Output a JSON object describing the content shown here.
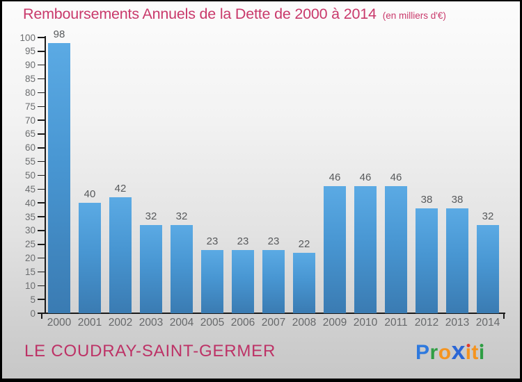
{
  "header": {
    "title": "Remboursements Annuels de la Dette de 2000 à 2014",
    "unit_note": "(en milliers d'€)"
  },
  "chart_data": {
    "type": "bar",
    "title": "Remboursements Annuels de la Dette de 2000 à 2014",
    "unit": "en milliers d'€",
    "categories": [
      "2000",
      "2001",
      "2002",
      "2003",
      "2004",
      "2005",
      "2006",
      "2007",
      "2008",
      "2009",
      "2010",
      "2011",
      "2012",
      "2013",
      "2014"
    ],
    "values": [
      98,
      40,
      42,
      32,
      32,
      23,
      23,
      23,
      22,
      46,
      46,
      46,
      38,
      38,
      32
    ],
    "xlabel": "",
    "ylabel": "",
    "ylim": [
      0,
      100
    ],
    "ytick_step": 5,
    "grid": false,
    "bar_value_labels_shown": true,
    "legend": null,
    "colors": {
      "bar_top": "#5baae4",
      "bar_bottom": "#3a7bb2",
      "axis": "#1a1a1a",
      "ytick_label": "#6b6d6f",
      "xtick_label": "#66686a",
      "value_label": "#57595b"
    }
  },
  "footer": {
    "location_label": "LE COUDRAY-SAINT-GERMER",
    "brand": {
      "name": "Proxiti",
      "letters": [
        {
          "char": "P",
          "color": "#2e79de"
        },
        {
          "char": "r",
          "color": "#2f9e44"
        },
        {
          "char": "o",
          "color": "#f5941f"
        },
        {
          "char": "x",
          "color": "#2a66d6",
          "big": true
        },
        {
          "char": "i",
          "color": "#f5941f",
          "dot_color": "#e23b2e"
        },
        {
          "char": "t",
          "color": "#f5941f"
        },
        {
          "char": "i",
          "color": "#2f9e44",
          "dot_color": "#2f9e44"
        }
      ]
    }
  },
  "theme": {
    "title_color": "#c9396b",
    "unit_note_color": "#c9396b",
    "location_color": "#bd3266",
    "frame_border": "#000000",
    "background_top": "#fcfcfc",
    "background_bottom": "#c7c7c7"
  }
}
